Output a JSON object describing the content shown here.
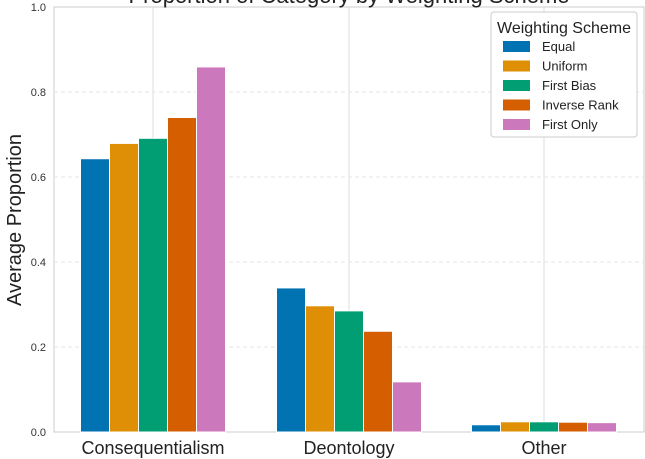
{
  "chart_data": {
    "type": "bar",
    "title": "Proportion of Category by Weighting Scheme",
    "xlabel": "",
    "ylabel": "Average Proportion",
    "ylim": [
      0,
      1.0
    ],
    "yticks": [
      "0.0",
      "0.2",
      "0.4",
      "0.6",
      "0.8",
      "1.0"
    ],
    "categories": [
      "Consequentialism",
      "Deontology",
      "Other"
    ],
    "grid": true,
    "legend": {
      "title": "Weighting Scheme",
      "position": "top-right"
    },
    "series": [
      {
        "name": "Equal",
        "color": "#0173b2",
        "values": [
          0.643,
          0.339,
          0.017
        ]
      },
      {
        "name": "Uniform",
        "color": "#de8f05",
        "values": [
          0.679,
          0.297,
          0.024
        ]
      },
      {
        "name": "First Bias",
        "color": "#029e73",
        "values": [
          0.691,
          0.285,
          0.024
        ]
      },
      {
        "name": "Inverse Rank",
        "color": "#d55e00",
        "values": [
          0.74,
          0.237,
          0.023
        ]
      },
      {
        "name": "First Only",
        "color": "#cc78bc",
        "values": [
          0.859,
          0.118,
          0.022
        ]
      }
    ]
  }
}
